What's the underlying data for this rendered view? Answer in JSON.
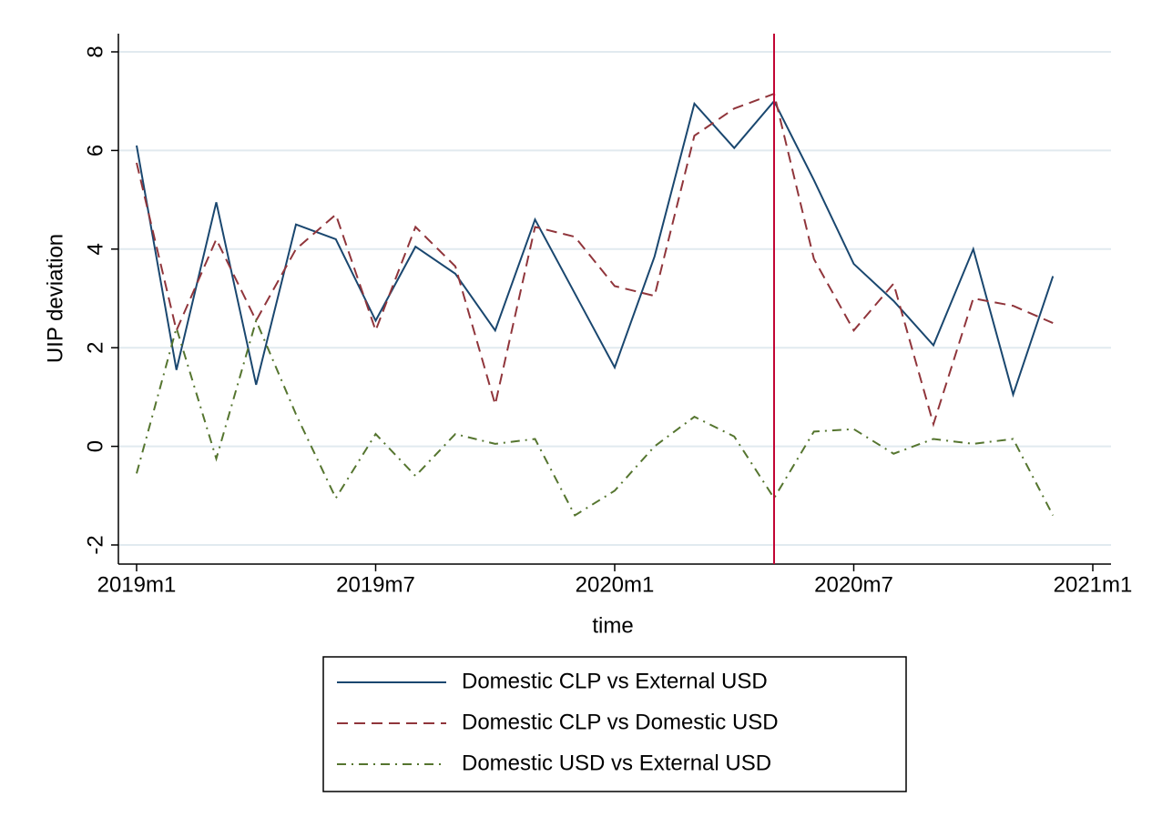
{
  "chart_data": {
    "type": "line",
    "x_label": "time",
    "y_label": "UIP deviation",
    "x": [
      "2019m1",
      "2019m2",
      "2019m3",
      "2019m4",
      "2019m5",
      "2019m6",
      "2019m7",
      "2019m8",
      "2019m9",
      "2019m10",
      "2019m11",
      "2019m12",
      "2020m1",
      "2020m2",
      "2020m3",
      "2020m4",
      "2020m5",
      "2020m6",
      "2020m7",
      "2020m8",
      "2020m9",
      "2020m10",
      "2020m11",
      "2020m12"
    ],
    "series": [
      {
        "name": "Domestic CLP vs External USD",
        "color": "#1a476f",
        "dash": "solid",
        "values": [
          6.1,
          1.55,
          4.95,
          1.25,
          4.5,
          4.2,
          2.55,
          4.05,
          3.5,
          2.35,
          4.6,
          3.1,
          1.6,
          3.85,
          6.95,
          6.05,
          7.0,
          5.4,
          3.7,
          2.95,
          2.05,
          4.0,
          1.05,
          3.45
        ]
      },
      {
        "name": "Domestic CLP vs Domestic USD",
        "color": "#90353b",
        "dash": "dash",
        "values": [
          5.75,
          2.35,
          4.2,
          2.55,
          4.0,
          4.7,
          2.35,
          4.45,
          3.65,
          0.85,
          4.45,
          4.25,
          3.25,
          3.05,
          6.3,
          6.85,
          7.15,
          3.8,
          2.35,
          3.3,
          0.45,
          3.0,
          2.85,
          2.5
        ]
      },
      {
        "name": "Domestic USD vs External USD",
        "color": "#55752f",
        "dash": "dashdot",
        "values": [
          -0.55,
          2.4,
          -0.25,
          2.55,
          0.65,
          -1.05,
          0.25,
          -0.6,
          0.25,
          0.05,
          0.15,
          -1.4,
          -0.9,
          0.0,
          0.6,
          0.2,
          -1.05,
          0.3,
          0.35,
          -0.15,
          0.15,
          0.05,
          0.15,
          -1.4
        ]
      }
    ],
    "xlim": [
      "2019m1",
      "2021m1"
    ],
    "xticks": [
      "2019m1",
      "2019m7",
      "2020m1",
      "2020m7",
      "2021m1"
    ],
    "ylim": [
      -2,
      8
    ],
    "yticks": [
      -2,
      0,
      2,
      4,
      6,
      8
    ],
    "grid": true,
    "vline": {
      "x": "2020m5",
      "color": "#c10534"
    },
    "legend": "bottom"
  }
}
